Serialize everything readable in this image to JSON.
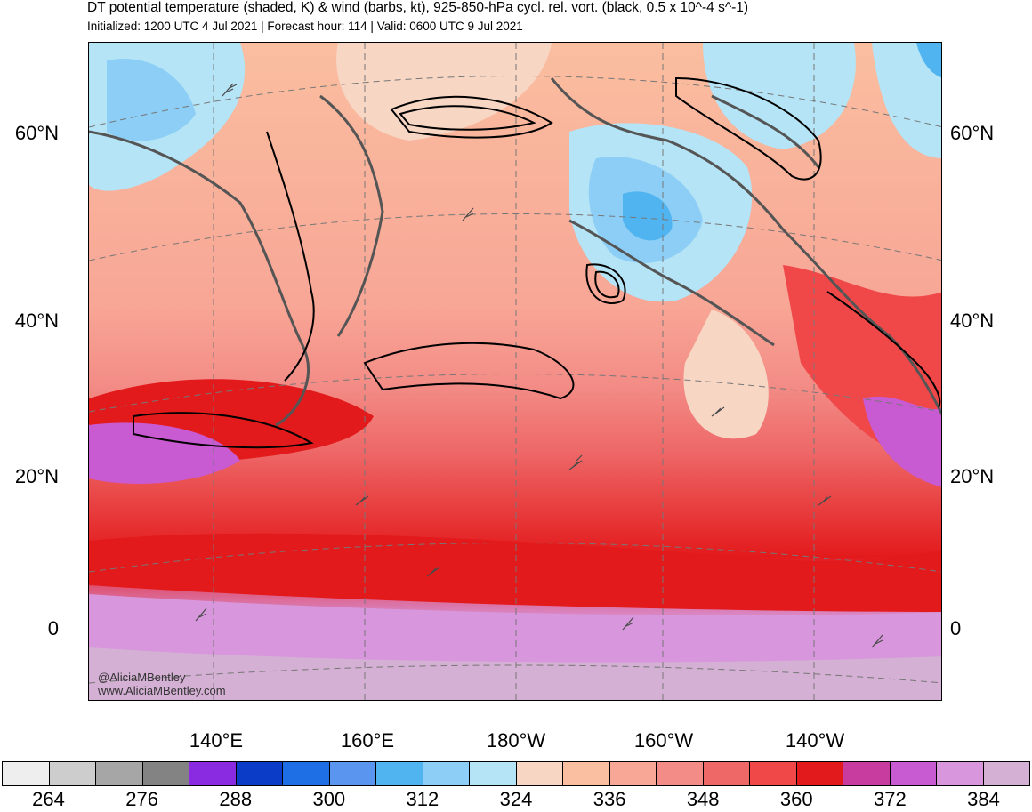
{
  "header": {
    "title": "DT potential temperature (shaded, K) & wind (barbs, kt), 925-850-hPa cycl. rel. vort. (black, 0.5 x 10^-4 s^-1)",
    "subtitle": "Initialized: 1200 UTC 4 Jul 2021 | Forecast hour: 114 | Valid: 0600 UTC 9 Jul 2021"
  },
  "map": {
    "lat_labels": [
      "60°N",
      "40°N",
      "20°N",
      "0"
    ],
    "lon_labels": [
      "140°E",
      "160°E",
      "180°W",
      "160°W",
      "140°W"
    ],
    "credit_line1": "@AliciaMBentley",
    "credit_line2": "www.AliciaMBentley.com"
  },
  "colorbar": {
    "labels": [
      "264",
      "276",
      "288",
      "300",
      "312",
      "324",
      "336",
      "348",
      "360",
      "372",
      "384"
    ],
    "colors": [
      "#eeeeee",
      "#cdcdcd",
      "#a6a6a6",
      "#838383",
      "#8a2be2",
      "#0a3cc8",
      "#1e6ee6",
      "#5a96f0",
      "#50b4f0",
      "#8ccef5",
      "#b4e4f5",
      "#f8d6c4",
      "#fabea0",
      "#f8a696",
      "#f38c86",
      "#ee6868",
      "#f04848",
      "#e31a1c",
      "#c83ca0",
      "#c85ad2",
      "#d896dc",
      "#d4b0d4"
    ]
  }
}
